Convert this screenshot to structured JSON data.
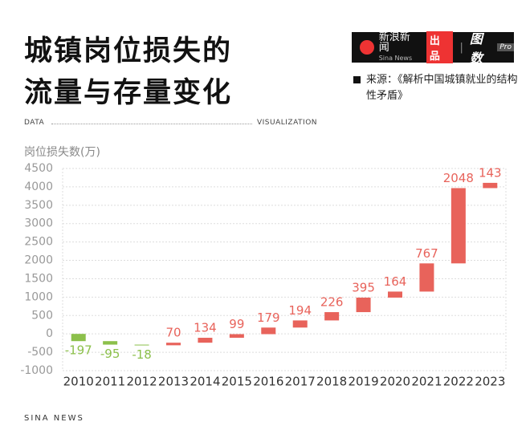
{
  "header": {
    "title": "城镇岗位损失的流量与存量变化",
    "brand": "新浪新闻",
    "brand_en": "Sina News",
    "produced": "出品",
    "logo": "图数",
    "logo_tag": "Pro",
    "source": "来源：《解析中国城镇就业的结构性矛盾》",
    "left_tag": "DATA",
    "right_tag": "VISUALIZATION"
  },
  "footer": {
    "text": "SINA NEWS"
  },
  "chart_data": {
    "type": "waterfall",
    "y_label": "岗位损失数(万)",
    "categories": [
      "2010",
      "2011",
      "2012",
      "2013",
      "2014",
      "2015",
      "2016",
      "2017",
      "2018",
      "2019",
      "2020",
      "2021",
      "2022",
      "2023"
    ],
    "values": [
      -197,
      -95,
      -18,
      70,
      134,
      99,
      179,
      194,
      226,
      395,
      164,
      767,
      2048,
      143
    ],
    "positive_color": "#e8635b",
    "negative_color": "#8cc04b",
    "ylim": [
      -1000,
      4500
    ],
    "yticks": [
      -1000,
      -500,
      0,
      500,
      1000,
      1500,
      2000,
      2500,
      3000,
      3500,
      4000,
      4500
    ],
    "grid": true
  }
}
